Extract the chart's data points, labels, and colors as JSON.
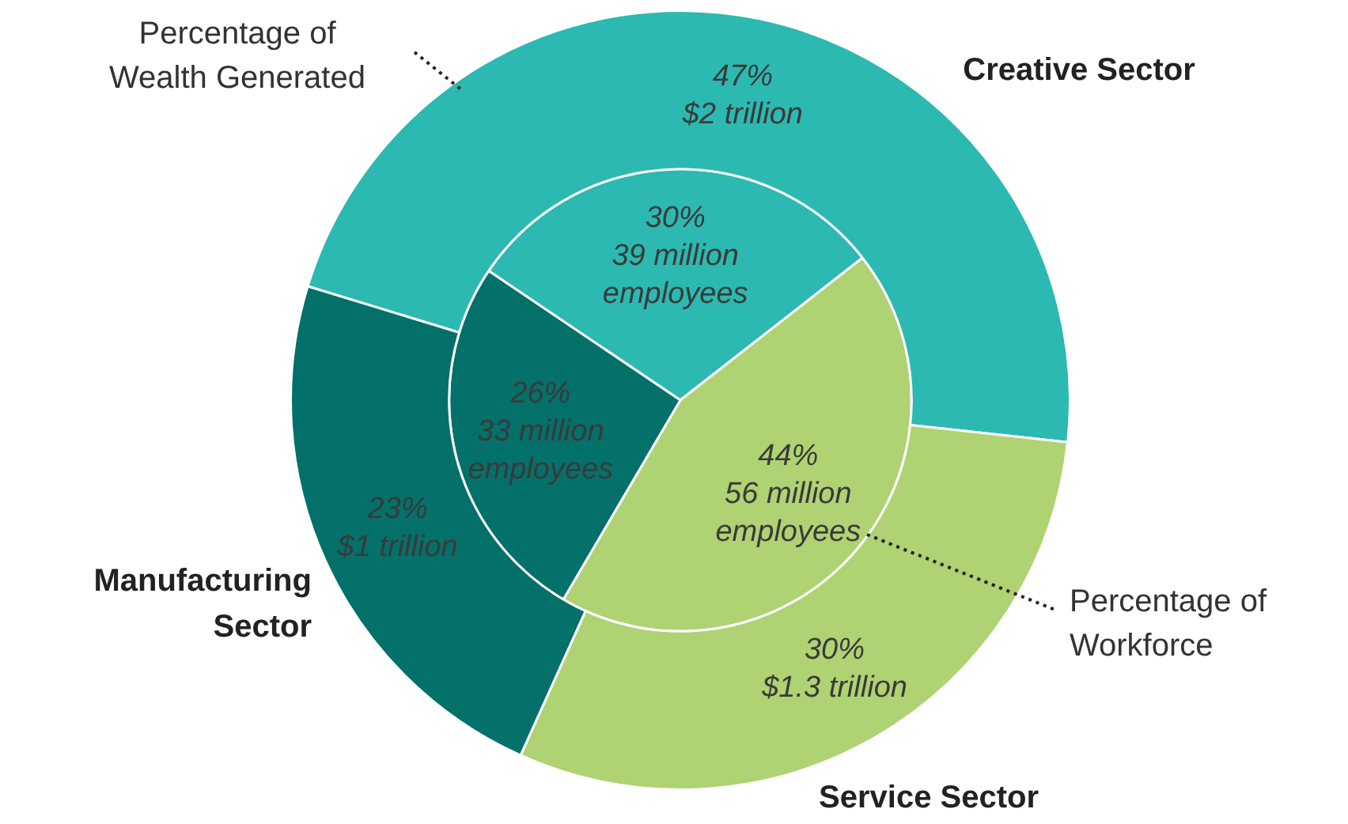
{
  "chart_data": {
    "type": "donut",
    "categories": [
      "Creative Sector",
      "Service Sector",
      "Manufacturing Sector"
    ],
    "colors": [
      "#2bb9b1",
      "#afd273",
      "#04706a"
    ],
    "series": [
      {
        "name": "Percentage of Wealth Generated",
        "values": [
          47,
          30,
          23
        ],
        "value_labels": [
          "47%\n$2 trillion",
          "30%\n$1.3 trillion",
          "23%\n$1 trillion"
        ]
      },
      {
        "name": "Percentage of Workforce",
        "values": [
          30,
          44,
          26
        ],
        "value_labels": [
          "30%\n39 million\nemployees",
          "44%\n56 million\nemployees",
          "26%\n33 million\nemployees"
        ]
      }
    ],
    "legend": false
  }
}
